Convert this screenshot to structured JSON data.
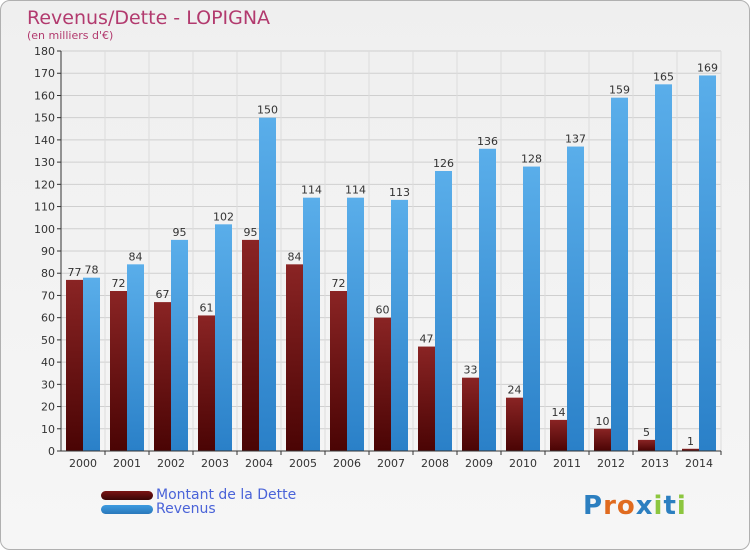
{
  "header": {
    "title": "Revenus/Dette - LOPIGNA",
    "subtitle": "(en milliers d'€)"
  },
  "legend": {
    "items": [
      {
        "label": "Montant de la Dette",
        "color": "#7a1414"
      },
      {
        "label": "Revenus",
        "color": "#3d9be0"
      }
    ]
  },
  "logo": {
    "text": "Proxiti"
  },
  "chart_data": {
    "type": "bar",
    "categories": [
      "2000",
      "2001",
      "2002",
      "2003",
      "2004",
      "2005",
      "2006",
      "2007",
      "2008",
      "2009",
      "2010",
      "2011",
      "2012",
      "2013",
      "2014"
    ],
    "series": [
      {
        "name": "Montant de la Dette",
        "values": [
          77,
          72,
          67,
          61,
          95,
          84,
          72,
          60,
          47,
          33,
          24,
          14,
          10,
          5,
          1
        ],
        "color": "#7a1414"
      },
      {
        "name": "Revenus",
        "values": [
          78,
          84,
          95,
          102,
          150,
          114,
          114,
          113,
          126,
          136,
          128,
          137,
          159,
          165,
          169
        ],
        "color": "#3d9be0"
      }
    ],
    "ylim": [
      0,
      180
    ],
    "ytick_step": 10,
    "grid": true,
    "legend_position": "bottom-left"
  }
}
